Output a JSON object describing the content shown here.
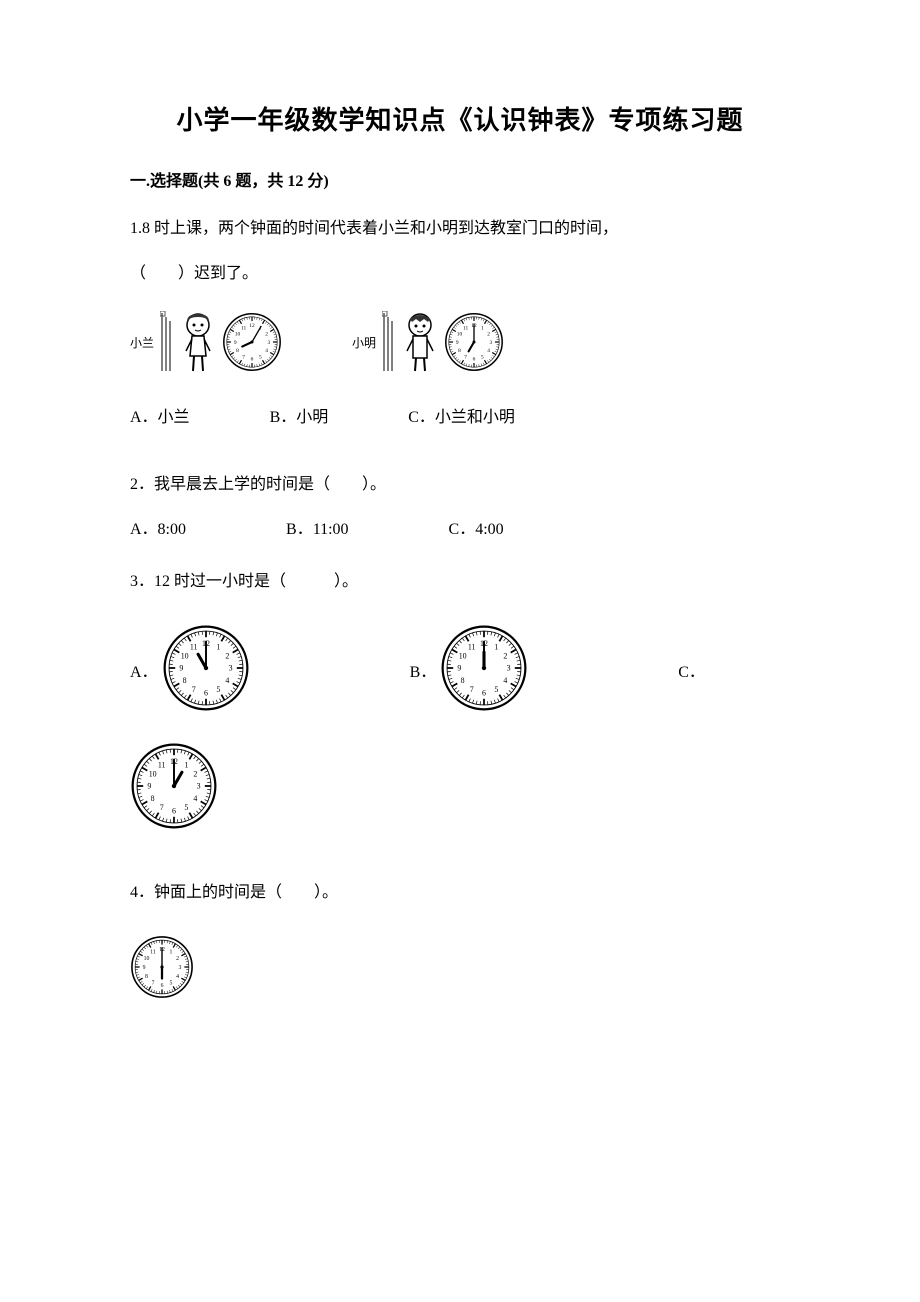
{
  "title": "小学一年级数学知识点《认识钟表》专项练习题",
  "section1": {
    "header": "一.选择题(共 6 题，共 12 分)"
  },
  "q1": {
    "text_line1": "1.8 时上课，两个钟面的时间代表着小兰和小明到达教室门口的时间，",
    "text_line2": "（　　）迟到了。",
    "person1_label": "小兰",
    "person2_label": "小明",
    "optA": "A．小兰",
    "optB": "B．小明",
    "optC": "C．小兰和小明",
    "clock1": {
      "hour_angle": 245,
      "minute_angle": 30
    },
    "clock2": {
      "hour_angle": 210,
      "minute_angle": 0
    }
  },
  "q2": {
    "text": "2．我早晨去上学的时间是（　　）。",
    "optA": "A．8:00",
    "optB": "B．11:00",
    "optC": "C．4:00"
  },
  "q3": {
    "text": "3．12 时过一小时是（　　　）。",
    "optA_letter": "A．",
    "optB_letter": "B．",
    "optC_letter": "C．",
    "clockA": {
      "hour_angle": -30,
      "minute_angle": 0
    },
    "clockB": {
      "hour_angle": 0,
      "minute_angle": 0
    },
    "clockC": {
      "hour_angle": 30,
      "minute_angle": 0
    }
  },
  "q4": {
    "text": "4．钟面上的时间是（　　）。",
    "clock": {
      "hour_angle": 180,
      "minute_angle": 0
    }
  },
  "clock_style": {
    "large_size": 88,
    "small_size": 64,
    "tiny_size": 60,
    "face_color": "#ffffff",
    "stroke_color": "#000000",
    "number_fontsize": 8
  },
  "colors": {
    "background": "#ffffff",
    "text": "#000000"
  }
}
